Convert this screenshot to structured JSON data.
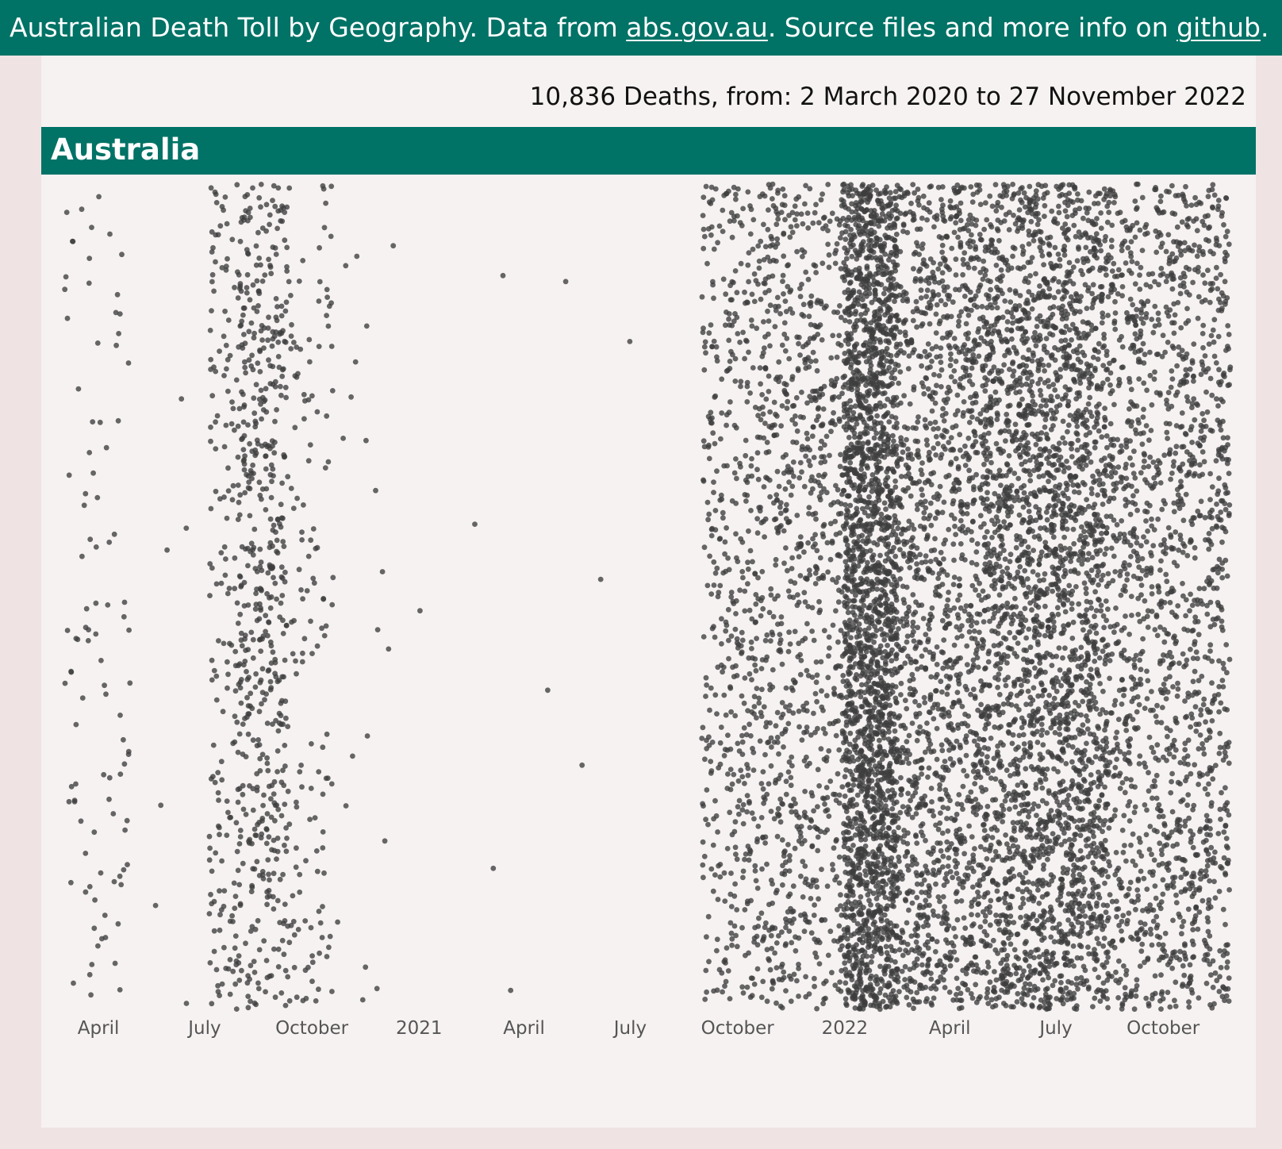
{
  "header": {
    "text_1": "Australian Death Toll by Geography. Data from ",
    "link_abs": "abs.gov.au",
    "text_2": ". Source files and more info on ",
    "link_github": "github",
    "text_3": "."
  },
  "summary": "10,836 Deaths, from: 2 March 2020 to 27 November 2022",
  "region": {
    "name": "Australia"
  },
  "colors": {
    "brand": "#007266",
    "page_background": "#efe3e3",
    "panel_background": "#f7f2f2",
    "dot": "#3d3d3d"
  },
  "chart_data": {
    "type": "scatter",
    "description_note": "",
    "title": "",
    "xlabel": "",
    "ylabel": "",
    "total_deaths": 10836,
    "x_start": "2020-03-02",
    "x_end": "2022-11-27",
    "y_axis_shown": false,
    "grid": false,
    "x_ticks": [
      {
        "date": "2020-04-01",
        "label": "April"
      },
      {
        "date": "2020-07-01",
        "label": "July"
      },
      {
        "date": "2020-10-01",
        "label": "October"
      },
      {
        "date": "2021-01-01",
        "label": "2021"
      },
      {
        "date": "2021-04-01",
        "label": "April"
      },
      {
        "date": "2021-07-01",
        "label": "July"
      },
      {
        "date": "2021-10-01",
        "label": "October"
      },
      {
        "date": "2022-01-01",
        "label": "2022"
      },
      {
        "date": "2022-04-01",
        "label": "April"
      },
      {
        "date": "2022-07-01",
        "label": "July"
      },
      {
        "date": "2022-10-01",
        "label": "October"
      }
    ],
    "density_periods": [
      {
        "start": "2020-03-02",
        "end": "2020-04-28",
        "deaths": 100
      },
      {
        "start": "2020-05-15",
        "end": "2020-06-25",
        "deaths": 6
      },
      {
        "start": "2020-07-05",
        "end": "2020-07-28",
        "deaths": 150
      },
      {
        "start": "2020-07-28",
        "end": "2020-09-10",
        "deaths": 560
      },
      {
        "start": "2020-09-10",
        "end": "2020-10-20",
        "deaths": 140
      },
      {
        "start": "2020-10-20",
        "end": "2020-12-15",
        "deaths": 20
      },
      {
        "start": "2021-01-01",
        "end": "2021-09-01",
        "deaths": 10
      },
      {
        "start": "2021-09-01",
        "end": "2021-10-15",
        "deaths": 420
      },
      {
        "start": "2021-10-15",
        "end": "2021-12-31",
        "deaths": 950
      },
      {
        "start": "2021-12-31",
        "end": "2022-02-15",
        "deaths": 2400
      },
      {
        "start": "2022-02-15",
        "end": "2022-04-30",
        "deaths": 1500
      },
      {
        "start": "2022-04-30",
        "end": "2022-08-15",
        "deaths": 3000
      },
      {
        "start": "2022-08-15",
        "end": "2022-11-27",
        "deaths": 1580
      }
    ]
  }
}
